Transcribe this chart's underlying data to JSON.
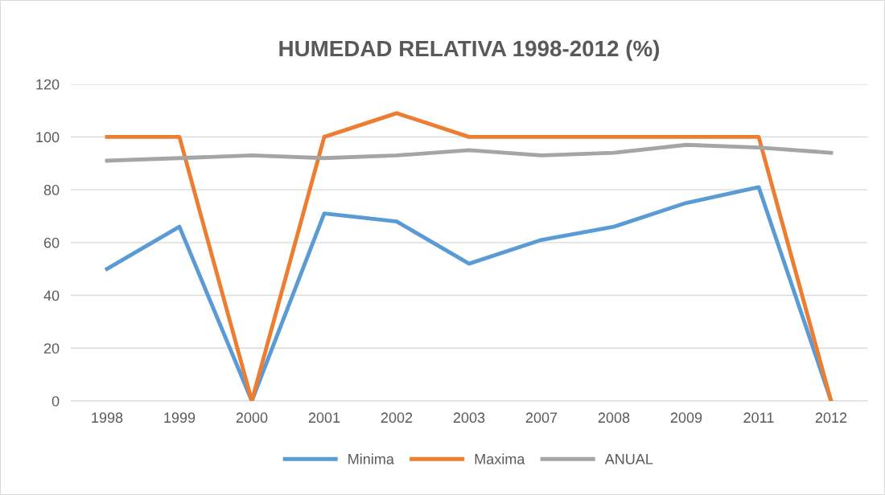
{
  "chart_data": {
    "type": "line",
    "title": "HUMEDAD RELATIVA 1998-2012 (%)",
    "categories": [
      "1998",
      "1999",
      "2000",
      "2001",
      "2002",
      "2003",
      "2007",
      "2008",
      "2009",
      "2011",
      "2012"
    ],
    "series": [
      {
        "name": "Minima",
        "color": "#5b9bd5",
        "values": [
          50,
          66,
          0,
          71,
          68,
          52,
          61,
          66,
          75,
          81,
          0
        ]
      },
      {
        "name": "Maxima",
        "color": "#ed7d31",
        "values": [
          100,
          100,
          0,
          100,
          109,
          100,
          100,
          100,
          100,
          100,
          0
        ]
      },
      {
        "name": "ANUAL",
        "color": "#a5a5a5",
        "values": [
          91,
          92,
          93,
          92,
          93,
          95,
          93,
          94,
          97,
          96,
          94
        ]
      }
    ],
    "ylim": [
      0,
      120
    ],
    "yticks": [
      0,
      20,
      40,
      60,
      80,
      100,
      120
    ],
    "grid": "y",
    "legend": "bottom",
    "marker": "none",
    "line_style": "solid"
  }
}
